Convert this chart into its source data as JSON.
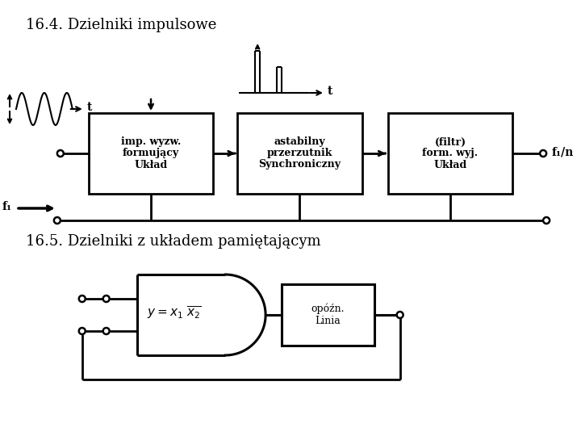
{
  "bg_color": "#ffffff",
  "title1": "16.4. Dzielniki impulsowe",
  "title2": "16.5. Dzielniki z układem pamiętającym",
  "box1_lines": [
    "Układ",
    "formujący",
    "imp. wyzw."
  ],
  "box2_lines": [
    "Synchroniczny",
    "przerzutnik",
    "astabilny"
  ],
  "box3_lines": [
    "Układ",
    "form. wyj.",
    "(filtr)"
  ],
  "box4_lines": [
    "Linia",
    "opóźn."
  ],
  "label_fi": "f₁",
  "label_fi_n": "f₁/n",
  "label_t1": "t",
  "label_t2": "t"
}
